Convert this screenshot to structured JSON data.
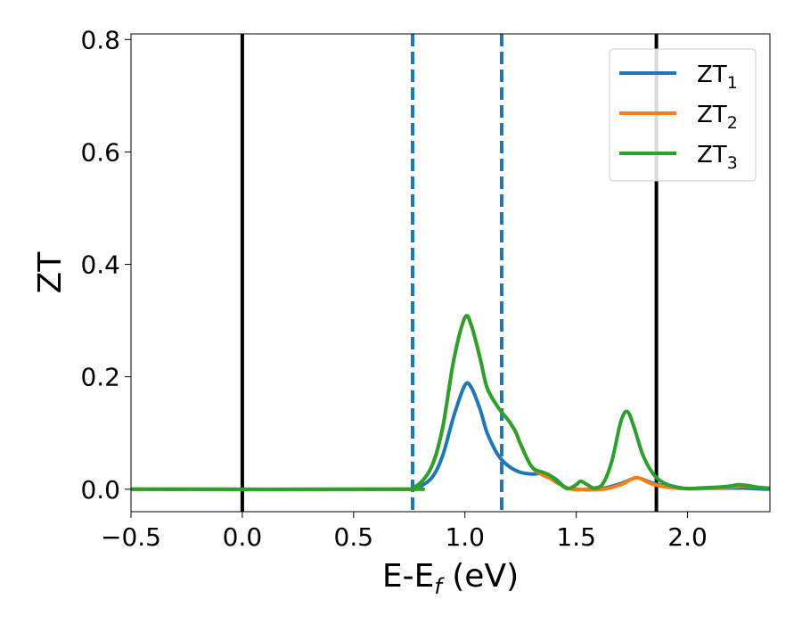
{
  "chart_data": {
    "type": "line",
    "xlabel": "E-E",
    "xlabel_sub": "f",
    "xlabel_unit": " (eV)",
    "ylabel": "ZT",
    "xlim": [
      -0.5,
      2.37
    ],
    "ylim": [
      -0.04,
      0.81
    ],
    "xticks": [
      -0.5,
      0.0,
      0.5,
      1.0,
      1.5,
      2.0
    ],
    "xtick_labels": [
      "−0.5",
      "0.0",
      "0.5",
      "1.0",
      "1.5",
      "2.0"
    ],
    "yticks": [
      0.0,
      0.2,
      0.4,
      0.6,
      0.8
    ],
    "ytick_labels": [
      "0.0",
      "0.2",
      "0.4",
      "0.6",
      "0.8"
    ],
    "grid": false,
    "legend_position": "top-right",
    "vlines_solid": [
      0.0,
      1.86
    ],
    "vlines_dashed": [
      0.765,
      1.165
    ],
    "vline_solid_color": "#000000",
    "vline_dashed_color": "#1f77b4",
    "series": [
      {
        "name": "ZT",
        "name_sub": "1",
        "color": "#1f77b4",
        "x": [
          -0.5,
          0.7,
          0.78,
          0.85,
          0.9,
          0.95,
          1.0,
          1.03,
          1.07,
          1.1,
          1.15,
          1.2,
          1.25,
          1.3,
          1.35,
          1.4,
          1.45,
          1.5,
          1.6,
          1.7,
          1.75,
          1.78,
          1.85,
          1.95,
          2.05,
          2.15,
          2.2,
          2.25,
          2.3,
          2.37
        ],
        "y": [
          0.0,
          0.0,
          0.003,
          0.02,
          0.06,
          0.13,
          0.185,
          0.18,
          0.14,
          0.1,
          0.06,
          0.04,
          0.03,
          0.027,
          0.028,
          0.02,
          0.004,
          0.0,
          0.0,
          0.01,
          0.018,
          0.02,
          0.01,
          0.002,
          0.001,
          0.002,
          0.002,
          0.002,
          0.001,
          0.0
        ]
      },
      {
        "name": "ZT",
        "name_sub": "2",
        "color": "#ff7f0e",
        "x": [
          -0.5,
          0.7,
          0.78,
          0.85,
          0.9,
          0.95,
          1.0,
          1.03,
          1.07,
          1.1,
          1.15,
          1.2,
          1.23,
          1.25,
          1.3,
          1.35,
          1.38,
          1.42,
          1.48,
          1.55,
          1.62,
          1.7,
          1.75,
          1.78,
          1.85,
          1.95,
          2.05,
          2.15,
          2.2,
          2.25,
          2.3,
          2.37
        ],
        "y": [
          0.0,
          0.0,
          0.005,
          0.04,
          0.11,
          0.23,
          0.305,
          0.29,
          0.23,
          0.18,
          0.145,
          0.12,
          0.1,
          0.08,
          0.04,
          0.025,
          0.02,
          0.01,
          0.0,
          0.0,
          0.0,
          0.008,
          0.018,
          0.02,
          0.008,
          0.002,
          0.001,
          0.003,
          0.004,
          0.006,
          0.004,
          0.002
        ]
      },
      {
        "name": "ZT",
        "name_sub": "3",
        "color": "#2ca02c",
        "x": [
          -0.5,
          0.7,
          0.78,
          0.85,
          0.9,
          0.95,
          1.0,
          1.03,
          1.07,
          1.1,
          1.15,
          1.2,
          1.23,
          1.25,
          1.3,
          1.35,
          1.38,
          1.42,
          1.46,
          1.5,
          1.52,
          1.55,
          1.58,
          1.62,
          1.66,
          1.7,
          1.73,
          1.76,
          1.8,
          1.85,
          1.9,
          1.95,
          2.0,
          2.05,
          2.1,
          2.15,
          2.2,
          2.23,
          2.28,
          2.33,
          2.37
        ],
        "y": [
          0.0,
          0.0,
          0.005,
          0.04,
          0.11,
          0.23,
          0.305,
          0.29,
          0.23,
          0.18,
          0.145,
          0.12,
          0.1,
          0.08,
          0.04,
          0.03,
          0.025,
          0.012,
          0.001,
          0.008,
          0.014,
          0.008,
          0.002,
          0.01,
          0.05,
          0.12,
          0.138,
          0.11,
          0.06,
          0.025,
          0.01,
          0.004,
          0.001,
          0.002,
          0.003,
          0.004,
          0.006,
          0.008,
          0.006,
          0.002,
          0.001
        ]
      }
    ]
  }
}
